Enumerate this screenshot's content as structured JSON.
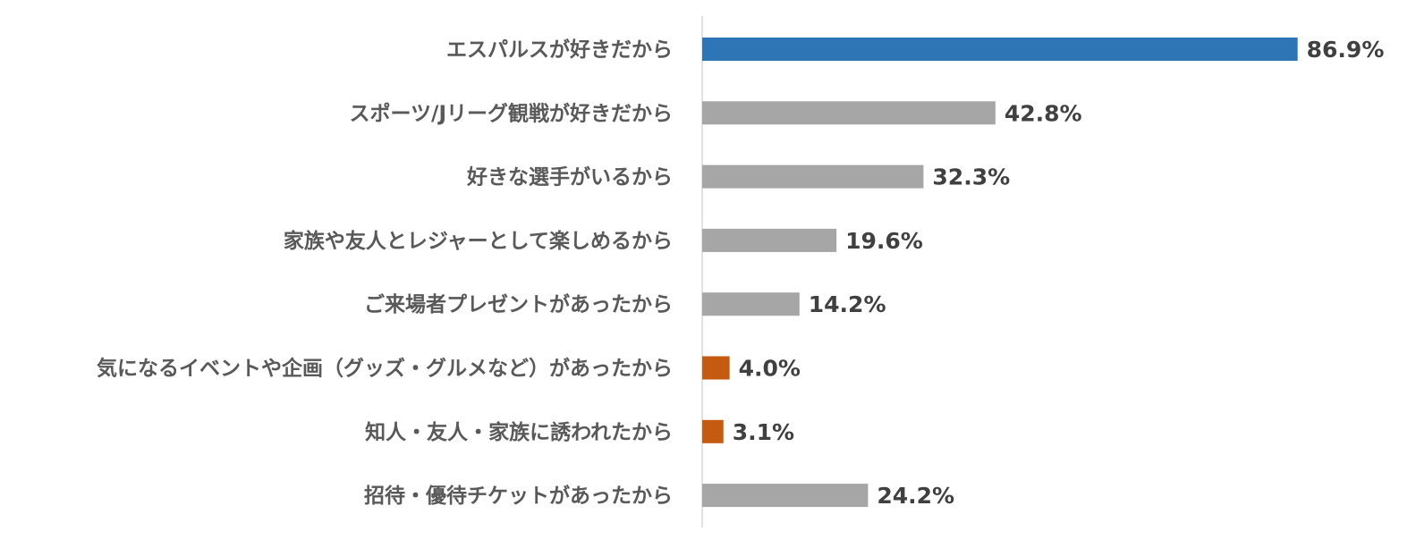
{
  "chart_data": {
    "type": "bar",
    "orientation": "horizontal",
    "title": "",
    "xlabel": "",
    "ylabel": "",
    "xlim": [
      0,
      100
    ],
    "grid": false,
    "legend": "none",
    "value_suffix": "%",
    "categories": [
      "エスパルスが好きだから",
      "スポーツ/Jリーグ観戦が好きだから",
      "好きな選手がいるから",
      "家族や友人とレジャーとして楽しめるから",
      "ご来場者プレゼントがあったから",
      "気になるイベントや企画（グッズ・グルメなど）があったから",
      "知人・友人・家族に誘われたから",
      "招待・優待チケットがあったから"
    ],
    "values": [
      86.9,
      42.8,
      32.3,
      19.6,
      14.2,
      4.0,
      3.1,
      24.2
    ],
    "value_labels": [
      "86.9%",
      "42.8%",
      "32.3%",
      "19.6%",
      "14.2%",
      "4.0%",
      "3.1%",
      "24.2%"
    ],
    "bar_colors": [
      "#2E75B6",
      "#A6A6A6",
      "#A6A6A6",
      "#A6A6A6",
      "#A6A6A6",
      "#C55A11",
      "#C55A11",
      "#A6A6A6"
    ]
  },
  "colors": {
    "axis": "#D9D9D9",
    "category_text": "#595959",
    "value_text": "#404040"
  }
}
